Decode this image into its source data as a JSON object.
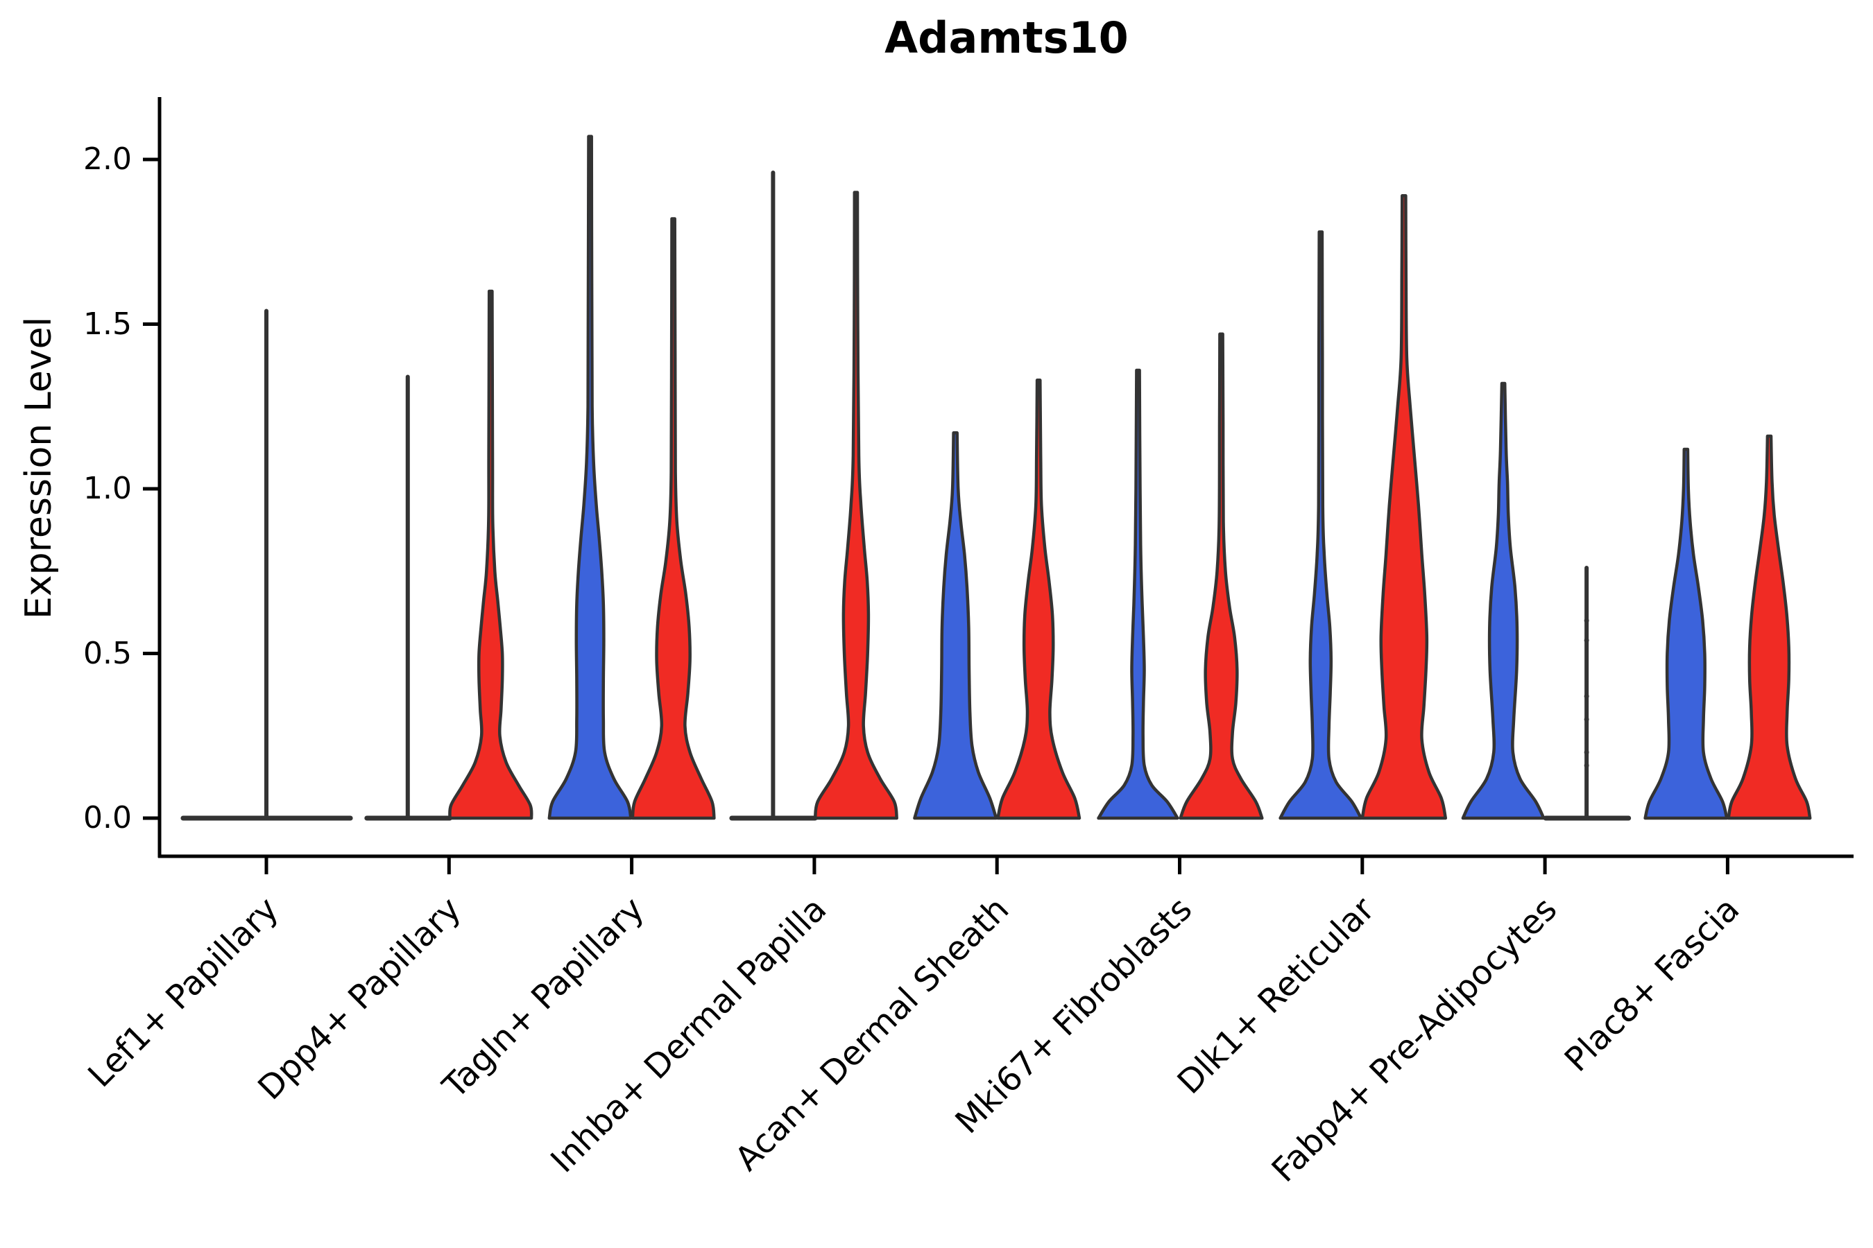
{
  "title": "Adamts10",
  "y_axis": {
    "label": "Expression Level",
    "tick_labels": [
      "0.0",
      "0.5",
      "1.0",
      "1.5",
      "2.0"
    ]
  },
  "x_axis": {
    "categories": [
      "Lef1+ Papillary",
      "Dpp4+ Papillary",
      "Tagln+ Papillary",
      "Inhba+ Dermal Papilla",
      "Acan+ Dermal Sheath",
      "Mki67+ Fibroblasts",
      "Dlk1+ Reticular",
      "Fabp4+ Pre-Adipocytes",
      "Plac8+ Fascia"
    ]
  },
  "colors": {
    "blue": "#3C63DB",
    "red": "#F02B24",
    "edge": "#333333",
    "axis": "#000000"
  },
  "chart_data": {
    "type": "violin",
    "title": "Adamts10",
    "xlabel": "",
    "ylabel": "Expression Level",
    "yticks": [
      0.0,
      0.5,
      1.0,
      1.5,
      2.0
    ],
    "ylim": [
      -0.12,
      2.19
    ],
    "legend": "none",
    "grid": false,
    "categories": [
      "Lef1+ Papillary",
      "Dpp4+ Papillary",
      "Tagln+ Papillary",
      "Inhba+ Dermal Papilla",
      "Acan+ Dermal Sheath",
      "Mki67+ Fibroblasts",
      "Dlk1+ Reticular",
      "Fabp4+ Pre-Adipocytes",
      "Plac8+ Fascia"
    ],
    "series": [
      {
        "name": "blue-group",
        "color": "#3C63DB",
        "side": -1
      },
      {
        "name": "red-group",
        "color": "#F02B24",
        "side": 1
      }
    ],
    "violins": [
      {
        "cat": 0,
        "group": "blue-group",
        "side": -1,
        "kind": "flat",
        "max": 0.0,
        "flat_span": [
          -0.456,
          0.46
        ]
      },
      {
        "cat": 0,
        "group": "red-group",
        "side": 1,
        "kind": "spike",
        "max": 1.54,
        "spike_at": 0.0
      },
      {
        "cat": 1,
        "group": "blue-group",
        "side": -1,
        "kind": "flat_spike",
        "max": 1.34,
        "flat_span": [
          -0.45,
          0.004
        ],
        "spike_at": -0.226
      },
      {
        "cat": 1,
        "group": "red-group",
        "side": 1,
        "kind": "body",
        "max": 1.6,
        "profile": [
          [
            0,
            0.98
          ],
          [
            0.04,
            0.95
          ],
          [
            0.1,
            0.67
          ],
          [
            0.17,
            0.37
          ],
          [
            0.25,
            0.22
          ],
          [
            0.33,
            0.25
          ],
          [
            0.42,
            0.28
          ],
          [
            0.5,
            0.28
          ],
          [
            0.58,
            0.23
          ],
          [
            0.66,
            0.17
          ],
          [
            0.75,
            0.1
          ],
          [
            0.9,
            0.05
          ],
          [
            1.1,
            0.045
          ],
          [
            1.6,
            0.035
          ]
        ]
      },
      {
        "cat": 2,
        "group": "blue-group",
        "side": -1,
        "kind": "body",
        "max": 2.07,
        "profile": [
          [
            0,
            0.98
          ],
          [
            0.05,
            0.9
          ],
          [
            0.12,
            0.57
          ],
          [
            0.2,
            0.35
          ],
          [
            0.3,
            0.32
          ],
          [
            0.42,
            0.32
          ],
          [
            0.54,
            0.33
          ],
          [
            0.65,
            0.32
          ],
          [
            0.75,
            0.28
          ],
          [
            0.85,
            0.22
          ],
          [
            0.95,
            0.15
          ],
          [
            1.08,
            0.085
          ],
          [
            1.25,
            0.05
          ],
          [
            1.6,
            0.042
          ],
          [
            2.07,
            0.035
          ]
        ]
      },
      {
        "cat": 2,
        "group": "red-group",
        "side": 1,
        "kind": "body",
        "max": 1.82,
        "profile": [
          [
            0,
            0.98
          ],
          [
            0.05,
            0.93
          ],
          [
            0.12,
            0.67
          ],
          [
            0.2,
            0.4
          ],
          [
            0.28,
            0.28
          ],
          [
            0.38,
            0.35
          ],
          [
            0.48,
            0.4
          ],
          [
            0.58,
            0.38
          ],
          [
            0.68,
            0.3
          ],
          [
            0.78,
            0.18
          ],
          [
            0.9,
            0.085
          ],
          [
            1.05,
            0.05
          ],
          [
            1.4,
            0.042
          ],
          [
            1.82,
            0.035
          ]
        ]
      },
      {
        "cat": 3,
        "group": "blue-group",
        "side": -1,
        "kind": "flat_spike",
        "max": 1.96,
        "flat_span": [
          -0.452,
          0.004
        ],
        "spike_at": -0.226
      },
      {
        "cat": 3,
        "group": "red-group",
        "side": 1,
        "kind": "body",
        "max": 1.9,
        "profile": [
          [
            0,
            0.98
          ],
          [
            0.05,
            0.92
          ],
          [
            0.12,
            0.58
          ],
          [
            0.2,
            0.28
          ],
          [
            0.28,
            0.18
          ],
          [
            0.38,
            0.23
          ],
          [
            0.5,
            0.28
          ],
          [
            0.62,
            0.3
          ],
          [
            0.72,
            0.27
          ],
          [
            0.82,
            0.2
          ],
          [
            0.95,
            0.12
          ],
          [
            1.1,
            0.067
          ],
          [
            1.5,
            0.042
          ],
          [
            1.9,
            0.035
          ]
        ]
      },
      {
        "cat": 4,
        "group": "blue-group",
        "side": -1,
        "kind": "body",
        "max": 1.17,
        "profile": [
          [
            0,
            0.98
          ],
          [
            0.06,
            0.83
          ],
          [
            0.14,
            0.55
          ],
          [
            0.22,
            0.4
          ],
          [
            0.32,
            0.35
          ],
          [
            0.45,
            0.33
          ],
          [
            0.58,
            0.32
          ],
          [
            0.7,
            0.28
          ],
          [
            0.8,
            0.22
          ],
          [
            0.9,
            0.13
          ],
          [
            1.0,
            0.067
          ],
          [
            1.17,
            0.042
          ]
        ]
      },
      {
        "cat": 4,
        "group": "red-group",
        "side": 1,
        "kind": "body",
        "max": 1.33,
        "profile": [
          [
            0,
            0.98
          ],
          [
            0.06,
            0.87
          ],
          [
            0.14,
            0.57
          ],
          [
            0.24,
            0.33
          ],
          [
            0.32,
            0.27
          ],
          [
            0.42,
            0.32
          ],
          [
            0.52,
            0.35
          ],
          [
            0.62,
            0.33
          ],
          [
            0.72,
            0.25
          ],
          [
            0.82,
            0.15
          ],
          [
            0.95,
            0.067
          ],
          [
            1.1,
            0.05
          ],
          [
            1.33,
            0.035
          ]
        ]
      },
      {
        "cat": 5,
        "group": "blue-group",
        "side": -1,
        "kind": "body",
        "max": 1.36,
        "profile": [
          [
            0,
            0.95
          ],
          [
            0.05,
            0.7
          ],
          [
            0.1,
            0.33
          ],
          [
            0.16,
            0.15
          ],
          [
            0.25,
            0.12
          ],
          [
            0.35,
            0.13
          ],
          [
            0.45,
            0.15
          ],
          [
            0.55,
            0.13
          ],
          [
            0.65,
            0.1
          ],
          [
            0.8,
            0.067
          ],
          [
            1.0,
            0.05
          ],
          [
            1.36,
            0.035
          ]
        ]
      },
      {
        "cat": 5,
        "group": "red-group",
        "side": 1,
        "kind": "body",
        "max": 1.47,
        "profile": [
          [
            0,
            0.98
          ],
          [
            0.05,
            0.83
          ],
          [
            0.12,
            0.47
          ],
          [
            0.18,
            0.27
          ],
          [
            0.26,
            0.27
          ],
          [
            0.35,
            0.35
          ],
          [
            0.45,
            0.38
          ],
          [
            0.55,
            0.32
          ],
          [
            0.64,
            0.2
          ],
          [
            0.75,
            0.1
          ],
          [
            0.9,
            0.05
          ],
          [
            1.2,
            0.042
          ],
          [
            1.47,
            0.035
          ]
        ]
      },
      {
        "cat": 6,
        "group": "blue-group",
        "side": -1,
        "kind": "body",
        "max": 1.78,
        "profile": [
          [
            0,
            0.97
          ],
          [
            0.05,
            0.75
          ],
          [
            0.11,
            0.37
          ],
          [
            0.18,
            0.2
          ],
          [
            0.28,
            0.2
          ],
          [
            0.38,
            0.23
          ],
          [
            0.48,
            0.25
          ],
          [
            0.58,
            0.22
          ],
          [
            0.68,
            0.15
          ],
          [
            0.8,
            0.085
          ],
          [
            0.95,
            0.05
          ],
          [
            1.4,
            0.042
          ],
          [
            1.78,
            0.035
          ]
        ]
      },
      {
        "cat": 6,
        "group": "red-group",
        "side": 1,
        "kind": "body",
        "max": 1.89,
        "profile": [
          [
            0,
            1.0
          ],
          [
            0.06,
            0.9
          ],
          [
            0.14,
            0.6
          ],
          [
            0.24,
            0.43
          ],
          [
            0.34,
            0.48
          ],
          [
            0.45,
            0.53
          ],
          [
            0.55,
            0.55
          ],
          [
            0.68,
            0.5
          ],
          [
            0.8,
            0.43
          ],
          [
            0.95,
            0.35
          ],
          [
            1.1,
            0.25
          ],
          [
            1.25,
            0.15
          ],
          [
            1.4,
            0.067
          ],
          [
            1.65,
            0.05
          ],
          [
            1.89,
            0.042
          ]
        ]
      },
      {
        "cat": 7,
        "group": "blue-group",
        "side": -1,
        "kind": "body",
        "max": 1.32,
        "profile": [
          [
            0,
            0.97
          ],
          [
            0.05,
            0.78
          ],
          [
            0.12,
            0.4
          ],
          [
            0.2,
            0.23
          ],
          [
            0.3,
            0.25
          ],
          [
            0.45,
            0.32
          ],
          [
            0.58,
            0.33
          ],
          [
            0.7,
            0.28
          ],
          [
            0.82,
            0.17
          ],
          [
            0.92,
            0.12
          ],
          [
            1.02,
            0.1
          ],
          [
            1.12,
            0.067
          ],
          [
            1.32,
            0.035
          ]
        ]
      },
      {
        "cat": 7,
        "group": "red-group",
        "side": 1,
        "kind": "flat_spike",
        "max": 0.76,
        "flat_span": [
          0.004,
          0.458
        ],
        "spike_at": 0.228,
        "dots": [
          0.6,
          0.54,
          0.37,
          0.3,
          0.2,
          0.16
        ]
      },
      {
        "cat": 8,
        "group": "blue-group",
        "side": -1,
        "kind": "body",
        "max": 1.12,
        "profile": [
          [
            0,
            0.98
          ],
          [
            0.05,
            0.88
          ],
          [
            0.12,
            0.6
          ],
          [
            0.2,
            0.42
          ],
          [
            0.3,
            0.42
          ],
          [
            0.4,
            0.45
          ],
          [
            0.5,
            0.45
          ],
          [
            0.6,
            0.4
          ],
          [
            0.7,
            0.3
          ],
          [
            0.8,
            0.18
          ],
          [
            0.9,
            0.1
          ],
          [
            1.0,
            0.058
          ],
          [
            1.12,
            0.042
          ]
        ]
      },
      {
        "cat": 8,
        "group": "red-group",
        "side": 1,
        "kind": "body",
        "max": 1.16,
        "profile": [
          [
            0,
            0.98
          ],
          [
            0.05,
            0.9
          ],
          [
            0.12,
            0.63
          ],
          [
            0.22,
            0.43
          ],
          [
            0.32,
            0.43
          ],
          [
            0.42,
            0.47
          ],
          [
            0.52,
            0.47
          ],
          [
            0.62,
            0.42
          ],
          [
            0.72,
            0.33
          ],
          [
            0.82,
            0.22
          ],
          [
            0.92,
            0.12
          ],
          [
            1.02,
            0.067
          ],
          [
            1.16,
            0.042
          ]
        ]
      }
    ]
  }
}
